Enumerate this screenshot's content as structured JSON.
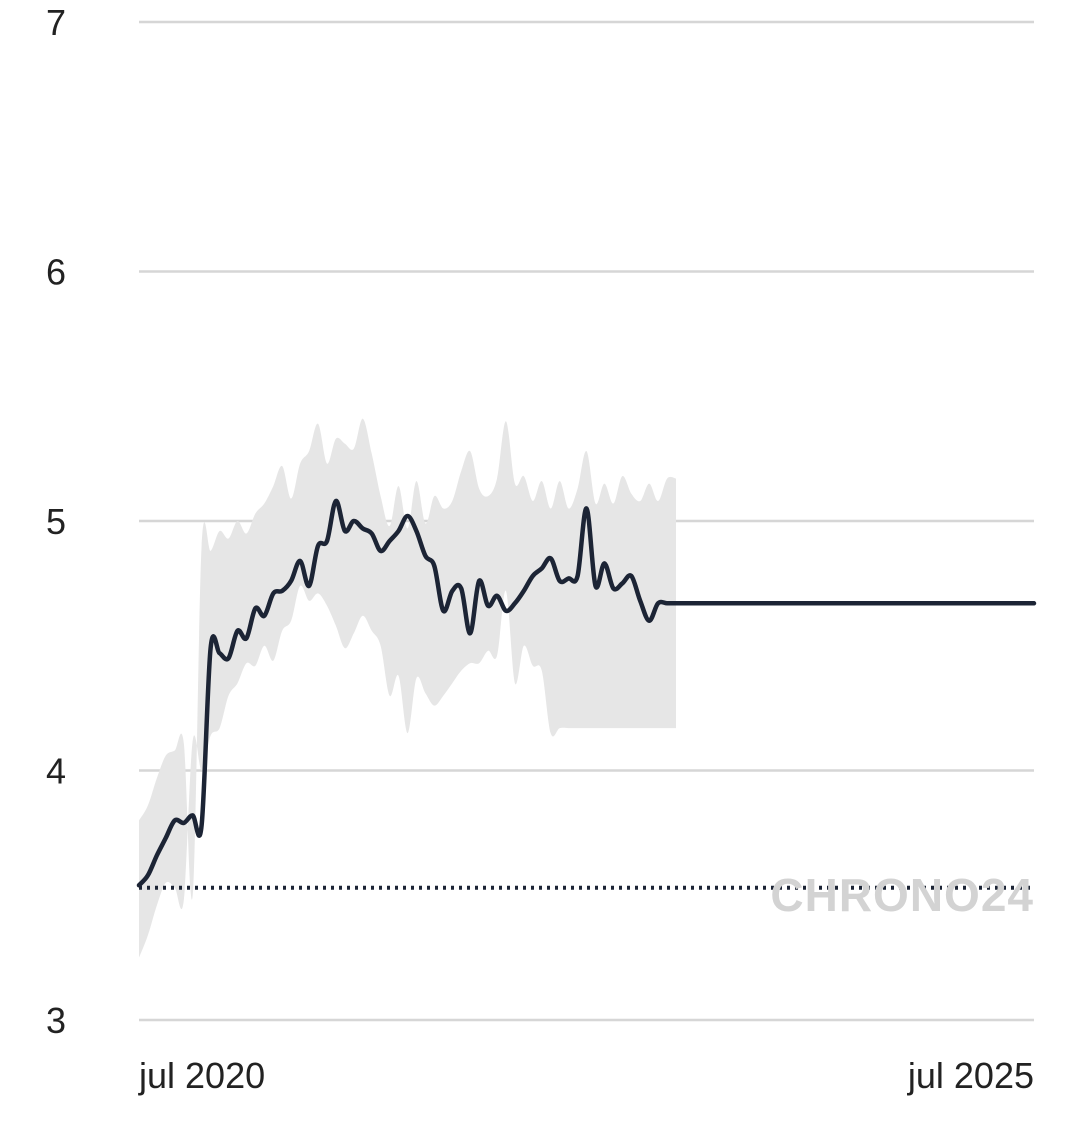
{
  "chart_data": {
    "type": "line",
    "xlabel": "",
    "ylabel": "",
    "x_tick_labels": [
      "jul 2020",
      "jul 2025"
    ],
    "y_ticks": [
      3,
      4,
      5,
      6,
      7
    ],
    "ylim": [
      3,
      7
    ],
    "grid": "horizontal",
    "legend": "none",
    "watermark": "CHRONO24",
    "reference_line": {
      "value": 3.53,
      "style": "dotted"
    },
    "series": [
      {
        "role": "main",
        "x": [
          0,
          0.05,
          0.1,
          0.15,
          0.2,
          0.25,
          0.3,
          0.35,
          0.4,
          0.45,
          0.5,
          0.55,
          0.6,
          0.65,
          0.7,
          0.75,
          0.8,
          0.85,
          0.9,
          0.95,
          1.0,
          1.05,
          1.1,
          1.15,
          1.2,
          1.25,
          1.3,
          1.35,
          1.4,
          1.45,
          1.5,
          1.55,
          1.6,
          1.65,
          1.7,
          1.75,
          1.8,
          1.85,
          1.9,
          1.95,
          2.0,
          2.05,
          2.1,
          2.15,
          2.2,
          2.25,
          2.3,
          2.35,
          2.4,
          2.45,
          2.5,
          2.55,
          2.6,
          2.65,
          2.7,
          2.75,
          2.8,
          2.85,
          2.9,
          2.95,
          3.0,
          3.05,
          3.1,
          3.15,
          3.2,
          3.25,
          3.3,
          3.35,
          3.4,
          3.45,
          3.5,
          3.55,
          3.6,
          3.65,
          3.7,
          3.75,
          3.8,
          3.85,
          3.9,
          3.95,
          4.0,
          4.05,
          4.1,
          4.15,
          4.2,
          4.25,
          4.3,
          4.35,
          4.4,
          4.45,
          4.5,
          4.55,
          4.6,
          4.65,
          4.7,
          4.75,
          4.8,
          4.85,
          4.9,
          4.95,
          5.0
        ],
        "values": [
          3.54,
          3.58,
          3.66,
          3.73,
          3.8,
          3.79,
          3.82,
          3.78,
          4.49,
          4.47,
          4.45,
          4.56,
          4.53,
          4.65,
          4.62,
          4.71,
          4.72,
          4.76,
          4.84,
          4.74,
          4.9,
          4.92,
          5.08,
          4.96,
          5.0,
          4.97,
          4.95,
          4.88,
          4.92,
          4.96,
          5.02,
          4.96,
          4.86,
          4.82,
          4.64,
          4.72,
          4.73,
          4.55,
          4.76,
          4.66,
          4.7,
          4.64,
          4.67,
          4.72,
          4.78,
          4.81,
          4.85,
          4.76,
          4.77,
          4.78,
          5.05,
          4.74,
          4.83,
          4.73,
          4.75,
          4.78,
          4.68,
          4.6,
          4.67,
          4.67,
          4.67,
          4.67,
          4.67,
          4.67,
          4.67,
          4.67,
          4.67,
          4.67,
          4.67,
          4.67,
          4.67,
          4.67,
          4.67,
          4.67,
          4.67,
          4.67,
          4.67,
          4.67,
          4.67,
          4.67,
          4.67,
          4.67,
          4.67,
          4.67,
          4.67,
          4.67,
          4.67,
          4.67,
          4.67,
          4.67,
          4.67,
          4.67,
          4.67,
          4.67,
          4.67,
          4.67,
          4.67,
          4.67,
          4.67,
          4.67,
          4.67
        ]
      }
    ],
    "band_x": [
      0,
      0.05,
      0.1,
      0.15,
      0.2,
      0.25,
      0.3,
      0.35,
      0.4,
      0.45,
      0.5,
      0.55,
      0.6,
      0.65,
      0.7,
      0.75,
      0.8,
      0.85,
      0.9,
      0.95,
      1.0,
      1.05,
      1.1,
      1.15,
      1.2,
      1.25,
      1.3,
      1.35,
      1.4,
      1.45,
      1.5,
      1.55,
      1.6,
      1.65,
      1.7,
      1.75,
      1.8,
      1.85,
      1.9,
      1.95,
      2.0,
      2.05,
      2.1,
      2.15,
      2.2,
      2.25,
      2.3,
      2.35,
      2.4,
      2.45,
      2.5,
      2.55,
      2.6,
      2.65,
      2.7,
      2.75,
      2.8,
      2.85,
      2.9,
      2.95,
      3.0
    ],
    "band_upper": [
      3.8,
      3.86,
      3.97,
      4.06,
      4.08,
      4.11,
      3.5,
      4.9,
      4.88,
      4.96,
      4.93,
      5.0,
      4.95,
      5.03,
      5.07,
      5.14,
      5.22,
      5.09,
      5.23,
      5.28,
      5.39,
      5.23,
      5.33,
      5.31,
      5.29,
      5.41,
      5.27,
      5.1,
      4.98,
      5.14,
      4.97,
      5.16,
      4.99,
      5.1,
      5.05,
      5.08,
      5.2,
      5.28,
      5.13,
      5.1,
      5.17,
      5.4,
      5.15,
      5.18,
      5.08,
      5.16,
      5.05,
      5.16,
      5.05,
      5.13,
      5.28,
      5.07,
      5.15,
      5.07,
      5.18,
      5.11,
      5.08,
      5.15,
      5.08,
      5.17,
      5.17
    ],
    "band_lower": [
      3.25,
      3.34,
      3.46,
      3.55,
      3.53,
      3.48,
      4.12,
      4.0,
      4.14,
      4.17,
      4.3,
      4.35,
      4.43,
      4.42,
      4.5,
      4.44,
      4.56,
      4.6,
      4.74,
      4.68,
      4.71,
      4.66,
      4.58,
      4.49,
      4.55,
      4.62,
      4.56,
      4.5,
      4.3,
      4.38,
      4.15,
      4.37,
      4.31,
      4.26,
      4.3,
      4.35,
      4.4,
      4.43,
      4.43,
      4.48,
      4.46,
      4.72,
      4.35,
      4.5,
      4.42,
      4.4,
      4.15,
      4.17,
      4.17,
      4.17,
      4.17,
      4.17,
      4.17,
      4.17,
      4.17,
      4.17,
      4.17,
      4.17,
      4.17,
      4.17,
      4.17
    ]
  }
}
